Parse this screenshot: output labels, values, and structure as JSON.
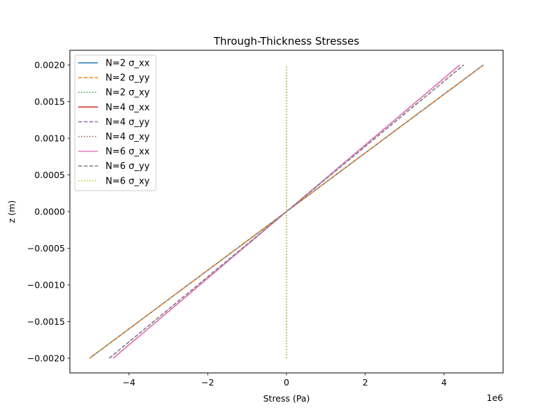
{
  "chart_data": {
    "type": "line",
    "title": "Through-Thickness Stresses",
    "xlabel": "Stress (Pa)",
    "ylabel": "z (m)",
    "x_offset_label": "1e6",
    "xlim": [
      -5500000,
      5500000
    ],
    "ylim": [
      -0.0022,
      0.0022
    ],
    "xticks": [
      -4000000,
      -2000000,
      0,
      2000000,
      4000000
    ],
    "xtick_labels": [
      "−4",
      "−2",
      "0",
      "2",
      "4"
    ],
    "yticks": [
      -0.002,
      -0.0015,
      -0.001,
      -0.0005,
      0,
      0.0005,
      0.001,
      0.0015,
      0.002
    ],
    "ytick_labels": [
      "−0.0020",
      "−0.0015",
      "−0.0010",
      "−0.0005",
      "0.0000",
      "0.0005",
      "0.0010",
      "0.0015",
      "0.0020"
    ],
    "grid": false,
    "legend_position": "upper-left",
    "series": [
      {
        "name": "N=2 σ_xx",
        "color": "#1f77b4",
        "style": "solid",
        "x": [
          -5000000,
          5000000
        ],
        "y": [
          -0.002,
          0.002
        ]
      },
      {
        "name": "N=2 σ_yy",
        "color": "#ff7f0e",
        "style": "dashed",
        "x": [
          -5000000,
          5000000
        ],
        "y": [
          -0.002,
          0.002
        ]
      },
      {
        "name": "N=2 σ_xy",
        "color": "#2ca02c",
        "style": "dotted",
        "x": [
          0,
          0
        ],
        "y": [
          -0.002,
          0.002
        ]
      },
      {
        "name": "N=4 σ_xx",
        "color": "#d62728",
        "style": "solid",
        "x": [
          -4400000,
          4400000
        ],
        "y": [
          -0.002,
          0.002
        ]
      },
      {
        "name": "N=4 σ_yy",
        "color": "#9467bd",
        "style": "dashed",
        "x": [
          -4500000,
          4500000
        ],
        "y": [
          -0.002,
          0.002
        ]
      },
      {
        "name": "N=4 σ_xy",
        "color": "#8c564b",
        "style": "dotted",
        "x": [
          0,
          0
        ],
        "y": [
          -0.002,
          0.002
        ]
      },
      {
        "name": "N=6 σ_xx",
        "color": "#e377c2",
        "style": "solid",
        "x": [
          -4400000,
          4400000
        ],
        "y": [
          -0.002,
          0.002
        ]
      },
      {
        "name": "N=6 σ_yy",
        "color": "#7f7f7f",
        "style": "dashed",
        "x": [
          -4500000,
          4500000
        ],
        "y": [
          -0.002,
          0.002
        ]
      },
      {
        "name": "N=6 σ_xy",
        "color": "#bcbd22",
        "style": "dotted",
        "x": [
          0,
          0
        ],
        "y": [
          -0.002,
          0.002
        ]
      }
    ]
  }
}
